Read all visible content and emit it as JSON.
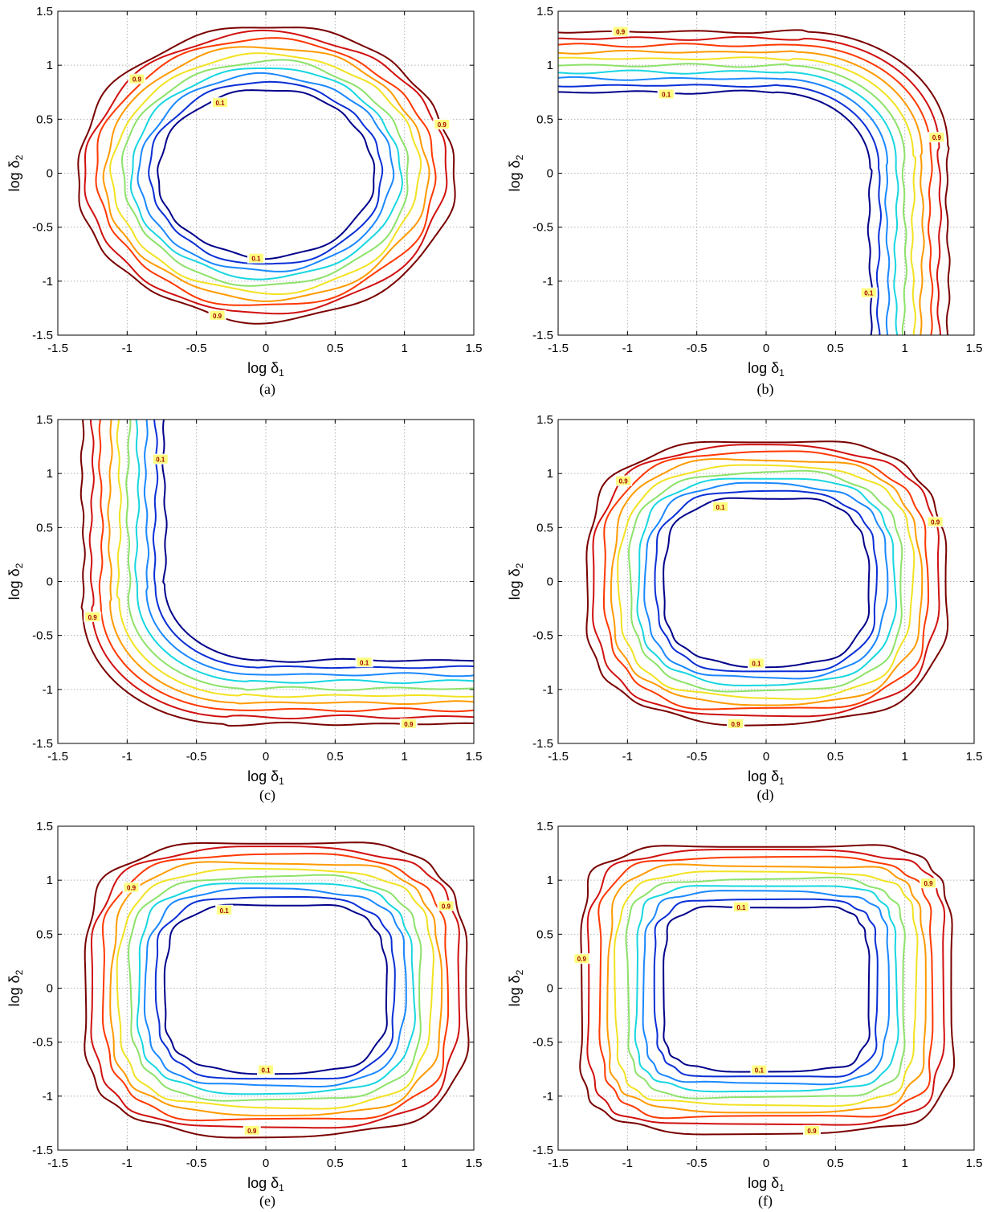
{
  "colors": {
    "levels": [
      "#00008b",
      "#0a2fd6",
      "#1a88ff",
      "#18d6e0",
      "#8de26a",
      "#f2e222",
      "#ff9a00",
      "#ff3800",
      "#d11010",
      "#7a0000"
    ],
    "grid": "#b3b3b3",
    "label_bg": "#ffff80",
    "label_text": "#a00000"
  },
  "chart_data": [
    {
      "type": "contour",
      "caption": "(a)",
      "xlabel_main": "log δ",
      "xlabel_sub": "1",
      "ylabel_main": "log δ",
      "ylabel_sub": "2",
      "xlim": [
        -1.5,
        1.5
      ],
      "ylim": [
        -1.5,
        1.5
      ],
      "xticks": [
        "-1.5",
        "-1",
        "-0.5",
        "0",
        "0.5",
        "1",
        "1.5"
      ],
      "yticks": [
        "-1.5",
        "-1",
        "-0.5",
        "0",
        "0.5",
        "1",
        "1.5"
      ],
      "grid": true,
      "shape": "ellipse",
      "params": {
        "cx": 0.0,
        "cy": 0.0,
        "n": 2,
        "rx": [
          0.78,
          1.36
        ],
        "ry": [
          0.78,
          1.37
        ]
      },
      "levels": [
        0.1,
        0.2,
        0.3,
        0.4,
        0.5,
        0.6,
        0.7,
        0.8,
        0.9,
        1.0
      ],
      "labels": [
        {
          "text": "0.1",
          "level": 0,
          "x": -0.33,
          "y": 0.65
        },
        {
          "text": "0.1",
          "level": 0,
          "x": -0.07,
          "y": -0.79
        },
        {
          "text": "0.9",
          "level": 8,
          "x": -0.93,
          "y": 0.87
        },
        {
          "text": "0.9",
          "level": 8,
          "x": 1.27,
          "y": 0.45
        },
        {
          "text": "0.9",
          "level": 8,
          "x": -0.35,
          "y": -1.32
        }
      ]
    },
    {
      "type": "contour",
      "caption": "(b)",
      "xlabel_main": "log δ",
      "xlabel_sub": "1",
      "ylabel_main": "log δ",
      "ylabel_sub": "2",
      "xlim": [
        -1.5,
        1.5
      ],
      "ylim": [
        -1.5,
        1.5
      ],
      "xticks": [
        "-1.5",
        "-1",
        "-0.5",
        "0",
        "0.5",
        "1",
        "1.5"
      ],
      "yticks": [
        "-1.5",
        "-1",
        "-0.5",
        "0",
        "0.5",
        "1",
        "1.5"
      ],
      "grid": true,
      "shape": "corner",
      "params": {
        "dx": 1,
        "dy": -1,
        "edge": [
          0.75,
          1.31
        ],
        "corner_r": [
          0.7,
          1.05
        ]
      },
      "levels": [
        0.1,
        0.2,
        0.3,
        0.4,
        0.5,
        0.6,
        0.7,
        0.8,
        0.9,
        1.0
      ],
      "labels": [
        {
          "text": "0.9",
          "level": 8,
          "x": -1.05,
          "y": 1.31
        },
        {
          "text": "0.1",
          "level": 0,
          "x": -0.72,
          "y": 0.73
        },
        {
          "text": "0.9",
          "level": 8,
          "x": 1.23,
          "y": 0.33
        },
        {
          "text": "0.1",
          "level": 0,
          "x": 0.74,
          "y": -1.11
        }
      ]
    },
    {
      "type": "contour",
      "caption": "(c)",
      "xlabel_main": "log δ",
      "xlabel_sub": "1",
      "ylabel_main": "log δ",
      "ylabel_sub": "2",
      "xlim": [
        -1.5,
        1.5
      ],
      "ylim": [
        -1.5,
        1.5
      ],
      "xticks": [
        "-1.5",
        "-1",
        "-0.5",
        "0",
        "0.5",
        "1",
        "1.5"
      ],
      "yticks": [
        "-1.5",
        "-1",
        "-0.5",
        "0",
        "0.5",
        "1",
        "1.5"
      ],
      "grid": true,
      "shape": "corner",
      "params": {
        "dx": -1,
        "dy": 1,
        "edge": [
          0.73,
          1.32
        ],
        "corner_r": [
          0.7,
          1.05
        ]
      },
      "levels": [
        0.1,
        0.2,
        0.3,
        0.4,
        0.5,
        0.6,
        0.7,
        0.8,
        0.9,
        1.0
      ],
      "labels": [
        {
          "text": "0.1",
          "level": 0,
          "x": -0.76,
          "y": 1.13
        },
        {
          "text": "0.9",
          "level": 8,
          "x": -1.25,
          "y": -0.33
        },
        {
          "text": "0.1",
          "level": 0,
          "x": 0.71,
          "y": -0.75
        },
        {
          "text": "0.9",
          "level": 8,
          "x": 1.03,
          "y": -1.32
        }
      ]
    },
    {
      "type": "contour",
      "caption": "(d)",
      "xlabel_main": "log δ",
      "xlabel_sub": "1",
      "ylabel_main": "log δ",
      "ylabel_sub": "2",
      "xlim": [
        -1.5,
        1.5
      ],
      "ylim": [
        -1.5,
        1.5
      ],
      "xticks": [
        "-1.5",
        "-1",
        "-0.5",
        "0",
        "0.5",
        "1",
        "1.5"
      ],
      "yticks": [
        "-1.5",
        "-1",
        "-0.5",
        "0",
        "0.5",
        "1",
        "1.5"
      ],
      "grid": true,
      "shape": "superellipse",
      "params": {
        "cx": 0.0,
        "cy": 0.0,
        "n": 3,
        "rx": [
          0.74,
          1.3
        ],
        "ry": [
          0.78,
          1.31
        ]
      },
      "levels": [
        0.1,
        0.2,
        0.3,
        0.4,
        0.5,
        0.6,
        0.7,
        0.8,
        0.9,
        1.0
      ],
      "labels": [
        {
          "text": "0.1",
          "level": 0,
          "x": -0.33,
          "y": 0.69
        },
        {
          "text": "0.1",
          "level": 0,
          "x": -0.07,
          "y": -0.76
        },
        {
          "text": "0.9",
          "level": 8,
          "x": -1.03,
          "y": 0.93
        },
        {
          "text": "0.9",
          "level": 8,
          "x": 1.22,
          "y": 0.55
        },
        {
          "text": "0.9",
          "level": 8,
          "x": -0.22,
          "y": -1.32
        }
      ]
    },
    {
      "type": "contour",
      "caption": "(e)",
      "xlabel_main": "log δ",
      "xlabel_sub": "1",
      "ylabel_main": "log δ",
      "ylabel_sub": "2",
      "xlim": [
        -1.5,
        1.5
      ],
      "ylim": [
        -1.5,
        1.5
      ],
      "xticks": [
        "-1.5",
        "-1",
        "-0.5",
        "0",
        "0.5",
        "1",
        "1.5"
      ],
      "yticks": [
        "-1.5",
        "-1",
        "-0.5",
        "0",
        "0.5",
        "1",
        "1.5"
      ],
      "grid": true,
      "shape": "superellipse",
      "params": {
        "cx": 0.07,
        "cy": 0.0,
        "n": 3.5,
        "rx": [
          0.8,
          1.38
        ],
        "ry": [
          0.78,
          1.36
        ]
      },
      "levels": [
        0.1,
        0.2,
        0.3,
        0.4,
        0.5,
        0.6,
        0.7,
        0.8,
        0.9,
        1.0
      ],
      "labels": [
        {
          "text": "0.1",
          "level": 0,
          "x": -0.3,
          "y": 0.72
        },
        {
          "text": "0.1",
          "level": 0,
          "x": 0.0,
          "y": -0.76
        },
        {
          "text": "0.9",
          "level": 8,
          "x": -0.97,
          "y": 0.93
        },
        {
          "text": "0.9",
          "level": 8,
          "x": 1.3,
          "y": 0.76
        },
        {
          "text": "0.9",
          "level": 8,
          "x": -0.1,
          "y": -1.32
        }
      ]
    },
    {
      "type": "contour",
      "caption": "(f)",
      "xlabel_main": "log δ",
      "xlabel_sub": "1",
      "ylabel_main": "log δ",
      "ylabel_sub": "2",
      "xlim": [
        -1.5,
        1.5
      ],
      "ylim": [
        -1.5,
        1.5
      ],
      "xticks": [
        "-1.5",
        "-1",
        "-0.5",
        "0",
        "0.5",
        "1",
        "1.5"
      ],
      "yticks": [
        "-1.5",
        "-1",
        "-0.5",
        "0",
        "0.5",
        "1",
        "1.5"
      ],
      "grid": true,
      "shape": "superellipse",
      "params": {
        "cx": 0.0,
        "cy": 0.0,
        "n": 5,
        "rx": [
          0.74,
          1.34
        ],
        "ry": [
          0.76,
          1.33
        ]
      },
      "levels": [
        0.1,
        0.2,
        0.3,
        0.4,
        0.5,
        0.6,
        0.7,
        0.8,
        0.9,
        1.0
      ],
      "labels": [
        {
          "text": "0.1",
          "level": 0,
          "x": -0.18,
          "y": 0.75
        },
        {
          "text": "0.1",
          "level": 0,
          "x": -0.05,
          "y": -0.76
        },
        {
          "text": "0.9",
          "level": 8,
          "x": -1.33,
          "y": 0.27
        },
        {
          "text": "0.9",
          "level": 8,
          "x": 1.17,
          "y": 0.97
        },
        {
          "text": "0.9",
          "level": 8,
          "x": 0.33,
          "y": -1.32
        }
      ]
    }
  ]
}
